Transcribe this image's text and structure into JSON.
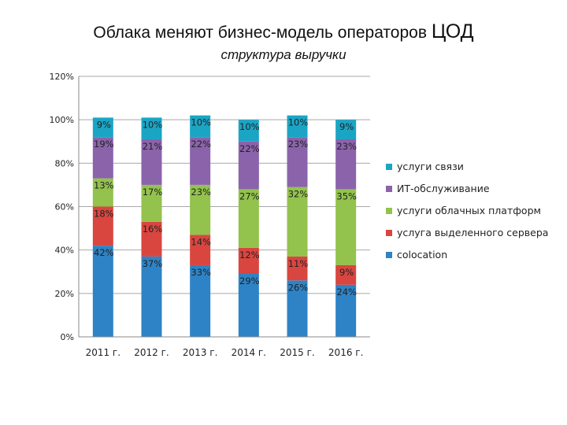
{
  "slide": {
    "title_main": "Облака меняют бизнес-модель операторов",
    "title_tail": "ЦОД",
    "subtitle": "структура выручки"
  },
  "chart_data": {
    "type": "bar",
    "stacked": true,
    "categories": [
      "2011 г.",
      "2012 г.",
      "2013 г.",
      "2014 г.",
      "2015 г.",
      "2016 г."
    ],
    "series": [
      {
        "name": "colocation",
        "color": "#2e83c6",
        "values": [
          42,
          37,
          33,
          29,
          26,
          24
        ]
      },
      {
        "name": "услуга выделенного сервера",
        "color": "#d9463f",
        "values": [
          18,
          16,
          14,
          12,
          11,
          9
        ]
      },
      {
        "name": "услуги облачных платформ",
        "color": "#93c24d",
        "values": [
          13,
          17,
          23,
          27,
          32,
          35
        ]
      },
      {
        "name": "ИТ-обслуживание",
        "color": "#8b63ab",
        "values": [
          19,
          21,
          22,
          22,
          23,
          23
        ]
      },
      {
        "name": "услуги связи",
        "color": "#1ba5c5",
        "values": [
          9,
          10,
          10,
          10,
          10,
          9
        ]
      }
    ],
    "ylim": [
      0,
      120
    ],
    "yticks": [
      "0%",
      "20%",
      "40%",
      "60%",
      "80%",
      "100%",
      "120%"
    ],
    "grid": true,
    "legend": "right",
    "value_suffix": "%"
  }
}
